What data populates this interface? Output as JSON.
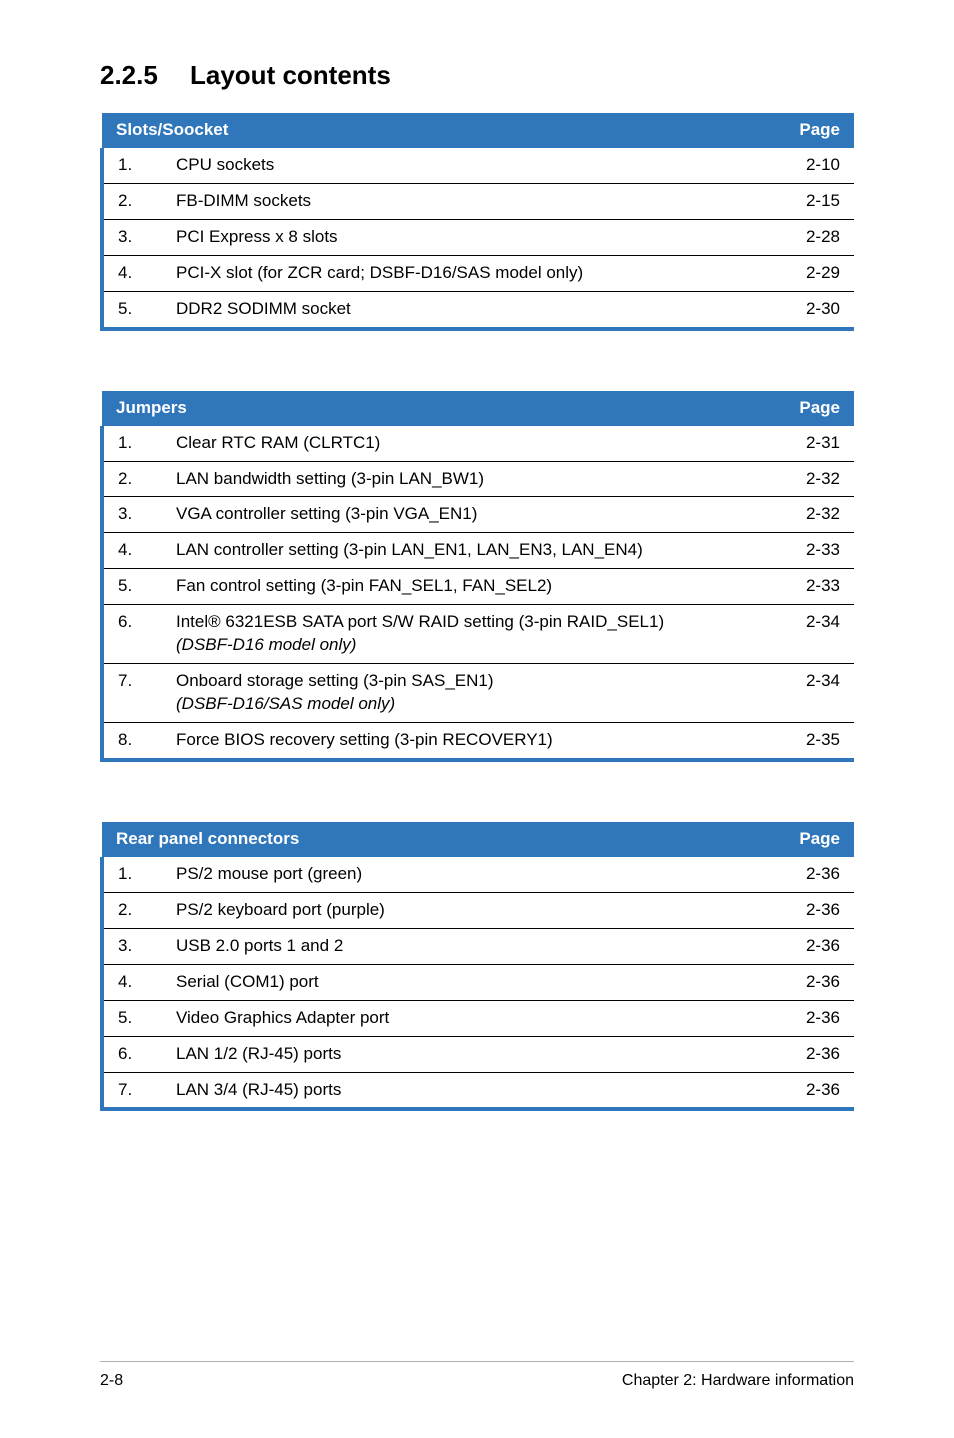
{
  "heading": {
    "number": "2.2.5",
    "title": "Layout contents"
  },
  "tables": [
    {
      "header_label": "Slots/Soocket",
      "page_label": "Page",
      "rows": [
        {
          "idx": "1.",
          "desc": "CPU sockets",
          "page": "2-10"
        },
        {
          "idx": "2.",
          "desc": "FB-DIMM sockets",
          "page": "2-15"
        },
        {
          "idx": "3.",
          "desc": "PCI Express x 8 slots",
          "page": "2-28"
        },
        {
          "idx": "4.",
          "desc": "PCI-X slot (for ZCR card; DSBF-D16/SAS model only)",
          "page": "2-29"
        },
        {
          "idx": "5.",
          "desc": "DDR2 SODIMM socket",
          "page": "2-30"
        }
      ]
    },
    {
      "header_label": "Jumpers",
      "page_label": "Page",
      "rows": [
        {
          "idx": "1.",
          "desc": "Clear RTC RAM (CLRTC1)",
          "page": "2-31"
        },
        {
          "idx": "2.",
          "desc": "LAN bandwidth setting (3-pin LAN_BW1)",
          "page": "2-32"
        },
        {
          "idx": "3.",
          "desc": "VGA controller setting (3-pin VGA_EN1)",
          "page": "2-32"
        },
        {
          "idx": "4.",
          "desc": "LAN controller setting (3-pin LAN_EN1, LAN_EN3, LAN_EN4)",
          "page": "2-33"
        },
        {
          "idx": "5.",
          "desc": "Fan control setting (3-pin FAN_SEL1, FAN_SEL2)",
          "page": "2-33"
        },
        {
          "idx": "6.",
          "desc": "Intel® 6321ESB SATA port S/W RAID setting (3-pin RAID_SEL1)",
          "desc_italic": "(DSBF-D16 model only)",
          "page": "2-34"
        },
        {
          "idx": "7.",
          "desc": "Onboard storage setting (3-pin SAS_EN1)",
          "desc_italic": "(DSBF-D16/SAS model only)",
          "page": "2-34"
        },
        {
          "idx": "8.",
          "desc": "Force BIOS recovery setting (3-pin RECOVERY1)",
          "page": "2-35"
        }
      ]
    },
    {
      "header_label": "Rear panel connectors",
      "page_label": "Page",
      "rows": [
        {
          "idx": "1.",
          "desc": "PS/2 mouse port (green)",
          "page": "2-36"
        },
        {
          "idx": "2.",
          "desc": "PS/2 keyboard port (purple)",
          "page": "2-36"
        },
        {
          "idx": "3.",
          "desc": "USB 2.0 ports 1 and 2",
          "page": "2-36"
        },
        {
          "idx": "4.",
          "desc": "Serial (COM1) port",
          "page": "2-36"
        },
        {
          "idx": "5.",
          "desc": "Video Graphics Adapter port",
          "page": "2-36"
        },
        {
          "idx": "6.",
          "desc": "LAN 1/2 (RJ-45) ports",
          "page": "2-36"
        },
        {
          "idx": "7.",
          "desc": "LAN 3/4 (RJ-45) ports",
          "page": "2-36"
        }
      ]
    }
  ],
  "footer": {
    "left": "2-8",
    "right": "Chapter 2: Hardware information"
  },
  "colors": {
    "header_bg": "#2f76ba",
    "header_fg": "#ffffff",
    "row_border": "#000000",
    "accent": "#2f76ba",
    "footer_rule": "#b0b0b0"
  }
}
